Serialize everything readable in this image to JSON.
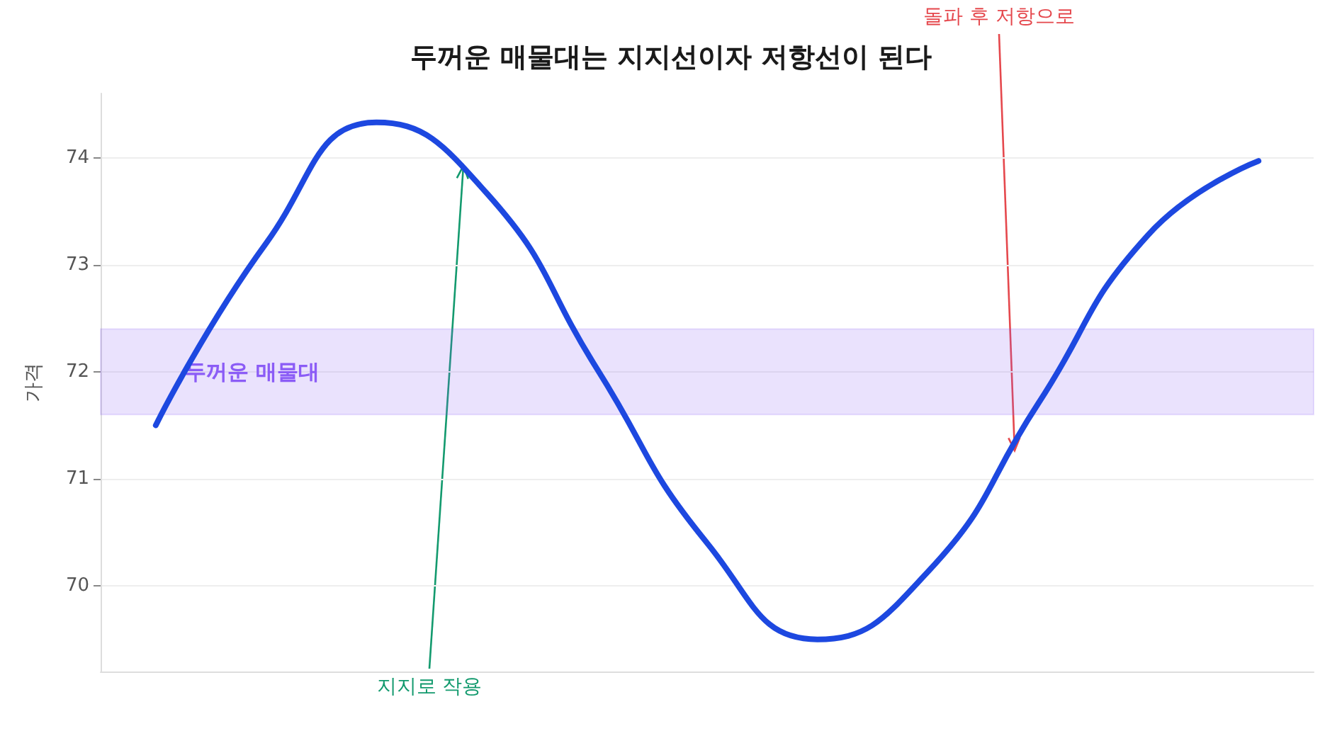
{
  "chart_data": {
    "type": "line",
    "title": "두꺼운 매물대는 지지선이자 저항선이 된다",
    "ylabel": "가격",
    "categories": [
      null,
      null,
      null,
      null,
      null,
      null,
      null,
      null,
      null,
      null,
      null
    ],
    "series": [
      {
        "color": "#1d48e0",
        "values": [
          71.5,
          73.2,
          74.33,
          73.67,
          72.03,
          70.4,
          69.5,
          70.13,
          71.7,
          73.28,
          73.97
        ]
      }
    ],
    "ylim": [
      69.2,
      74.6
    ],
    "yticks": [
      70,
      71,
      72,
      73,
      74
    ],
    "grid": "y",
    "tick_labels": "y",
    "marker": "none",
    "line_style": "solid",
    "bands": [
      {
        "axis": "y",
        "from": 71.6,
        "to": 72.4,
        "label": "두꺼운 매물대",
        "color": "#8b5cf6"
      }
    ],
    "annotations": [
      "지지로 작용",
      "돌파 후 저항으로"
    ]
  }
}
